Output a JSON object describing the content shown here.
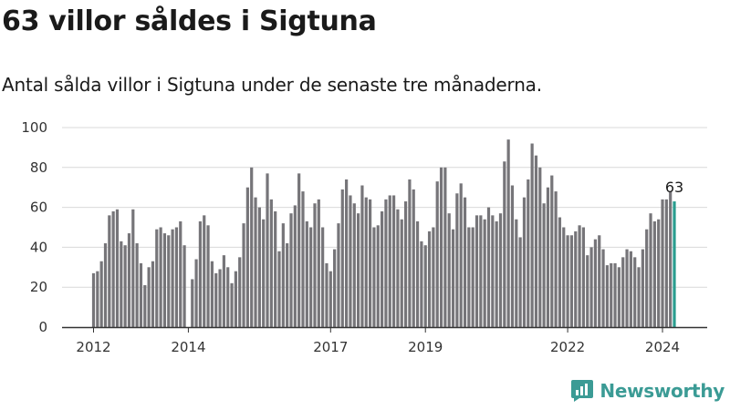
{
  "page": {
    "title": "63 villor såldes i Sigtuna",
    "subtitle": "Antal sålda villor i Sigtuna under de senaste tre månaderna."
  },
  "brand": {
    "name": "Newsworthy",
    "icon": "newsworthy-logo-icon",
    "color": "#3b9b95"
  },
  "colors": {
    "bar": "#767579",
    "highlight": "#2a9d8f",
    "grid": "#d9d9d9",
    "axis": "#333333"
  },
  "chart_data": {
    "type": "bar",
    "title": "63 villor såldes i Sigtuna",
    "xlabel": "",
    "ylabel": "",
    "ylim": [
      0,
      100
    ],
    "yticks": [
      0,
      20,
      40,
      60,
      80,
      100
    ],
    "grid": true,
    "start": "2012-01",
    "xticks": [
      {
        "label": "2012",
        "index": 0
      },
      {
        "label": "2014",
        "index": 24
      },
      {
        "label": "2017",
        "index": 60
      },
      {
        "label": "2019",
        "index": 84
      },
      {
        "label": "2022",
        "index": 120
      },
      {
        "label": "2024",
        "index": 144
      }
    ],
    "values": [
      27,
      28,
      33,
      42,
      56,
      58,
      59,
      43,
      41,
      47,
      59,
      42,
      32,
      21,
      30,
      33,
      49,
      50,
      47,
      46,
      49,
      50,
      53,
      41,
      null,
      24,
      34,
      53,
      56,
      51,
      33,
      27,
      29,
      36,
      30,
      22,
      28,
      35,
      52,
      70,
      80,
      65,
      60,
      54,
      77,
      64,
      58,
      38,
      52,
      42,
      57,
      61,
      77,
      68,
      53,
      50,
      62,
      64,
      50,
      32,
      28,
      39,
      52,
      69,
      74,
      66,
      62,
      57,
      71,
      65,
      64,
      50,
      51,
      58,
      64,
      66,
      66,
      59,
      54,
      63,
      74,
      69,
      53,
      43,
      41,
      48,
      50,
      73,
      80,
      80,
      57,
      49,
      67,
      72,
      65,
      50,
      50,
      56,
      56,
      54,
      60,
      56,
      53,
      57,
      83,
      94,
      71,
      54,
      45,
      65,
      74,
      92,
      86,
      80,
      62,
      70,
      76,
      68,
      55,
      50,
      46,
      46,
      48,
      51,
      50,
      36,
      40,
      44,
      46,
      39,
      31,
      32,
      32,
      30,
      35,
      39,
      38,
      35,
      30,
      39,
      49,
      57,
      53,
      54,
      64,
      64,
      68,
      63
    ],
    "highlight_index": 147,
    "annotations": [
      {
        "index": 147,
        "text": "63"
      }
    ]
  }
}
